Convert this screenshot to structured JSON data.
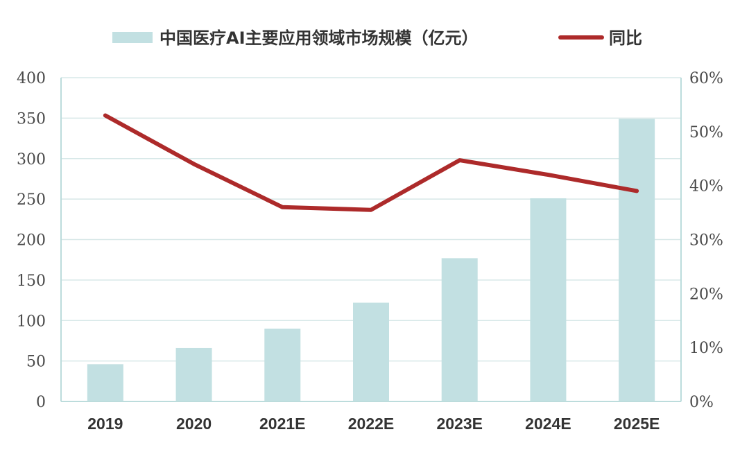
{
  "colors": {
    "bar": "#c2e0e2",
    "line": "#ad2a2a",
    "grid": "#d7e8e8",
    "axis": "#bcdcdc"
  },
  "chart_data": {
    "type": "bar",
    "categories": [
      "2019",
      "2020",
      "2021E",
      "2022E",
      "2023E",
      "2024E",
      "2025E"
    ],
    "series": [
      {
        "name": "中国医疗AI主要应用领域市场规模（亿元）",
        "type": "bar",
        "axis": "left",
        "values": [
          46,
          66,
          90,
          122,
          177,
          251,
          349
        ]
      },
      {
        "name": "同比",
        "type": "line",
        "axis": "right",
        "values": [
          53,
          44,
          36,
          35.5,
          44.7,
          42,
          39
        ]
      }
    ],
    "ylim_left": [
      0,
      400
    ],
    "ylim_right": [
      0,
      60
    ],
    "y_ticks_left": [
      "0",
      "50",
      "100",
      "150",
      "200",
      "250",
      "300",
      "350",
      "400"
    ],
    "y_ticks_right": [
      "0%",
      "10%",
      "20%",
      "30%",
      "40%",
      "50%",
      "60%"
    ],
    "grid": true,
    "legend_position": "top",
    "title": "",
    "xlabel": "",
    "ylabel": ""
  }
}
